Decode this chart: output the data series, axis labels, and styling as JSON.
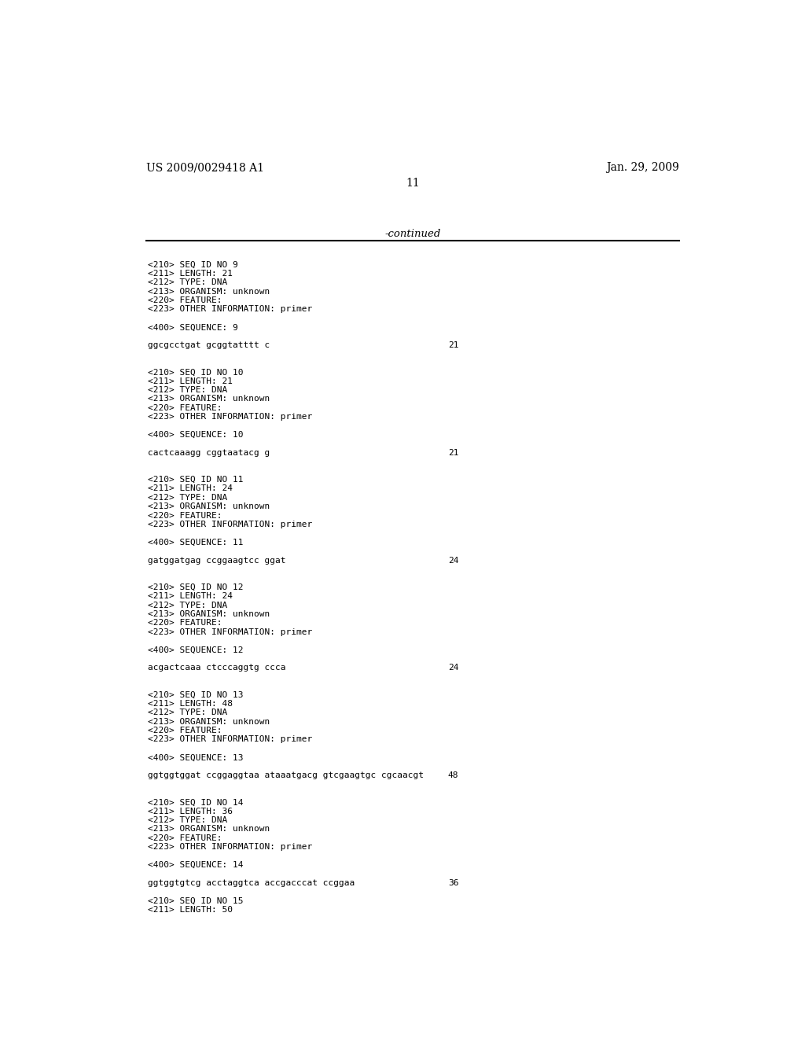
{
  "background_color": "#ffffff",
  "top_left_text": "US 2009/0029418 A1",
  "top_right_text": "Jan. 29, 2009",
  "page_number": "11",
  "continued_text": "-continued",
  "content": [
    {
      "type": "blank"
    },
    {
      "type": "meta",
      "text": "<210> SEQ ID NO 9"
    },
    {
      "type": "meta",
      "text": "<211> LENGTH: 21"
    },
    {
      "type": "meta",
      "text": "<212> TYPE: DNA"
    },
    {
      "type": "meta",
      "text": "<213> ORGANISM: unknown"
    },
    {
      "type": "meta",
      "text": "<220> FEATURE:"
    },
    {
      "type": "meta",
      "text": "<223> OTHER INFORMATION: primer"
    },
    {
      "type": "blank"
    },
    {
      "type": "meta",
      "text": "<400> SEQUENCE: 9"
    },
    {
      "type": "blank"
    },
    {
      "type": "seq",
      "text": "ggcgcctgat gcggtatttt c",
      "num": "21"
    },
    {
      "type": "blank"
    },
    {
      "type": "blank"
    },
    {
      "type": "meta",
      "text": "<210> SEQ ID NO 10"
    },
    {
      "type": "meta",
      "text": "<211> LENGTH: 21"
    },
    {
      "type": "meta",
      "text": "<212> TYPE: DNA"
    },
    {
      "type": "meta",
      "text": "<213> ORGANISM: unknown"
    },
    {
      "type": "meta",
      "text": "<220> FEATURE:"
    },
    {
      "type": "meta",
      "text": "<223> OTHER INFORMATION: primer"
    },
    {
      "type": "blank"
    },
    {
      "type": "meta",
      "text": "<400> SEQUENCE: 10"
    },
    {
      "type": "blank"
    },
    {
      "type": "seq",
      "text": "cactcaaagg cggtaatacg g",
      "num": "21"
    },
    {
      "type": "blank"
    },
    {
      "type": "blank"
    },
    {
      "type": "meta",
      "text": "<210> SEQ ID NO 11"
    },
    {
      "type": "meta",
      "text": "<211> LENGTH: 24"
    },
    {
      "type": "meta",
      "text": "<212> TYPE: DNA"
    },
    {
      "type": "meta",
      "text": "<213> ORGANISM: unknown"
    },
    {
      "type": "meta",
      "text": "<220> FEATURE:"
    },
    {
      "type": "meta",
      "text": "<223> OTHER INFORMATION: primer"
    },
    {
      "type": "blank"
    },
    {
      "type": "meta",
      "text": "<400> SEQUENCE: 11"
    },
    {
      "type": "blank"
    },
    {
      "type": "seq",
      "text": "gatggatgag ccggaagtcc ggat",
      "num": "24"
    },
    {
      "type": "blank"
    },
    {
      "type": "blank"
    },
    {
      "type": "meta",
      "text": "<210> SEQ ID NO 12"
    },
    {
      "type": "meta",
      "text": "<211> LENGTH: 24"
    },
    {
      "type": "meta",
      "text": "<212> TYPE: DNA"
    },
    {
      "type": "meta",
      "text": "<213> ORGANISM: unknown"
    },
    {
      "type": "meta",
      "text": "<220> FEATURE:"
    },
    {
      "type": "meta",
      "text": "<223> OTHER INFORMATION: primer"
    },
    {
      "type": "blank"
    },
    {
      "type": "meta",
      "text": "<400> SEQUENCE: 12"
    },
    {
      "type": "blank"
    },
    {
      "type": "seq",
      "text": "acgactcaaa ctcccaggtg ccca",
      "num": "24"
    },
    {
      "type": "blank"
    },
    {
      "type": "blank"
    },
    {
      "type": "meta",
      "text": "<210> SEQ ID NO 13"
    },
    {
      "type": "meta",
      "text": "<211> LENGTH: 48"
    },
    {
      "type": "meta",
      "text": "<212> TYPE: DNA"
    },
    {
      "type": "meta",
      "text": "<213> ORGANISM: unknown"
    },
    {
      "type": "meta",
      "text": "<220> FEATURE:"
    },
    {
      "type": "meta",
      "text": "<223> OTHER INFORMATION: primer"
    },
    {
      "type": "blank"
    },
    {
      "type": "meta",
      "text": "<400> SEQUENCE: 13"
    },
    {
      "type": "blank"
    },
    {
      "type": "seq",
      "text": "ggtggtggat ccggaggtaa ataaatgacg gtcgaagtgc cgcaacgt",
      "num": "48"
    },
    {
      "type": "blank"
    },
    {
      "type": "blank"
    },
    {
      "type": "meta",
      "text": "<210> SEQ ID NO 14"
    },
    {
      "type": "meta",
      "text": "<211> LENGTH: 36"
    },
    {
      "type": "meta",
      "text": "<212> TYPE: DNA"
    },
    {
      "type": "meta",
      "text": "<213> ORGANISM: unknown"
    },
    {
      "type": "meta",
      "text": "<220> FEATURE:"
    },
    {
      "type": "meta",
      "text": "<223> OTHER INFORMATION: primer"
    },
    {
      "type": "blank"
    },
    {
      "type": "meta",
      "text": "<400> SEQUENCE: 14"
    },
    {
      "type": "blank"
    },
    {
      "type": "seq",
      "text": "ggtggtgtcg acctaggtca accgacccat ccggaa",
      "num": "36"
    },
    {
      "type": "blank"
    },
    {
      "type": "meta",
      "text": "<210> SEQ ID NO 15"
    },
    {
      "type": "meta",
      "text": "<211> LENGTH: 50"
    }
  ]
}
